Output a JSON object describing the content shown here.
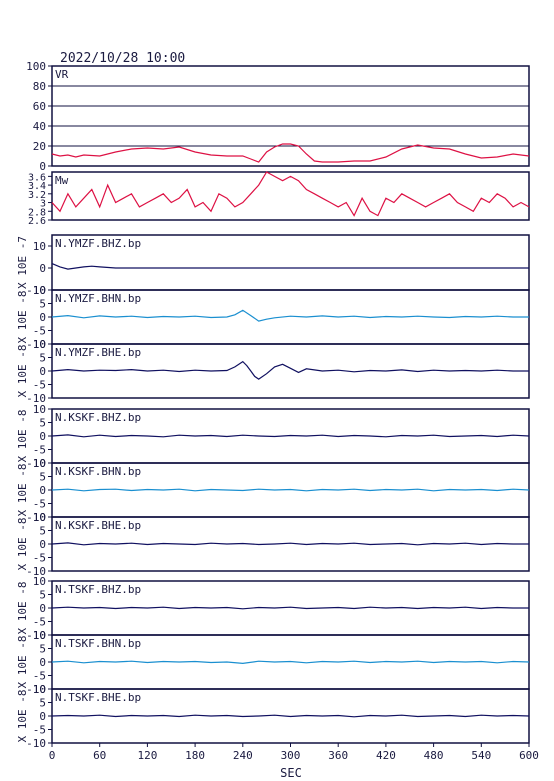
{
  "header": {
    "datetime": "2022/10/28 10:00"
  },
  "chart_data": {
    "type": "line",
    "xlabel": "SEC",
    "xlim": [
      0,
      600
    ],
    "xticks": [
      0,
      60,
      120,
      180,
      240,
      300,
      360,
      420,
      480,
      540,
      600
    ],
    "panels": [
      {
        "label": "VR",
        "ylim": [
          0,
          100
        ],
        "yticks": [
          0,
          20,
          40,
          60,
          80,
          100
        ],
        "grid": true,
        "color": "#dd1144",
        "x": [
          0,
          10,
          20,
          30,
          40,
          60,
          80,
          100,
          120,
          140,
          160,
          180,
          200,
          220,
          240,
          250,
          260,
          270,
          280,
          290,
          300,
          310,
          320,
          330,
          340,
          360,
          380,
          400,
          420,
          440,
          460,
          480,
          500,
          520,
          540,
          560,
          580,
          600
        ],
        "y": [
          12,
          10,
          11,
          9,
          11,
          10,
          14,
          17,
          18,
          17,
          19,
          14,
          11,
          10,
          10,
          7,
          4,
          14,
          19,
          22,
          22,
          20,
          12,
          5,
          4,
          4,
          5,
          5,
          9,
          17,
          21,
          18,
          17,
          12,
          8,
          9,
          12,
          10
        ]
      },
      {
        "label": "Mw",
        "ylim": [
          2.6,
          3.7
        ],
        "yticks": [
          2.6,
          2.8,
          3.0,
          3.2,
          3.4,
          3.6
        ],
        "grid": false,
        "color": "#dd1144",
        "x": [
          0,
          10,
          20,
          30,
          40,
          50,
          60,
          70,
          80,
          90,
          100,
          110,
          120,
          130,
          140,
          150,
          160,
          170,
          180,
          190,
          200,
          210,
          220,
          230,
          240,
          250,
          260,
          270,
          280,
          290,
          300,
          310,
          320,
          330,
          340,
          350,
          360,
          370,
          380,
          390,
          400,
          410,
          420,
          430,
          440,
          450,
          460,
          470,
          480,
          490,
          500,
          510,
          520,
          530,
          540,
          550,
          560,
          570,
          580,
          590,
          600
        ],
        "y": [
          3.0,
          2.8,
          3.2,
          2.9,
          3.1,
          3.3,
          2.9,
          3.4,
          3.0,
          3.1,
          3.2,
          2.9,
          3.0,
          3.1,
          3.2,
          3.0,
          3.1,
          3.3,
          2.9,
          3.0,
          2.8,
          3.2,
          3.1,
          2.9,
          3.0,
          3.2,
          3.4,
          3.7,
          3.6,
          3.5,
          3.6,
          3.5,
          3.3,
          3.2,
          3.1,
          3.0,
          2.9,
          3.0,
          2.7,
          3.1,
          2.8,
          2.7,
          3.1,
          3.0,
          3.2,
          3.1,
          3.0,
          2.9,
          3.0,
          3.1,
          3.2,
          3.0,
          2.9,
          2.8,
          3.1,
          3.0,
          3.2,
          3.1,
          2.9,
          3.0,
          2.9
        ]
      },
      {
        "label": "N.YMZF.BHZ.bp",
        "unit": "X 10E -7",
        "ylim": [
          -10,
          15
        ],
        "yticks": [
          -10,
          0,
          10
        ],
        "grid": false,
        "color": "#101060",
        "x": [
          0,
          10,
          20,
          30,
          40,
          50,
          60,
          80,
          100,
          600
        ],
        "y": [
          2,
          0.5,
          -0.5,
          0,
          0.5,
          0.8,
          0.5,
          0,
          0,
          0
        ]
      },
      {
        "label": "N.YMZF.BHN.bp",
        "unit": "X 10E -8",
        "ylim": [
          -10,
          10
        ],
        "yticks": [
          -10,
          -5,
          0,
          5,
          10
        ],
        "grid": false,
        "color": "#1a8fd0",
        "x": [
          0,
          20,
          40,
          60,
          80,
          100,
          120,
          140,
          160,
          180,
          200,
          220,
          230,
          240,
          250,
          260,
          270,
          280,
          300,
          320,
          340,
          360,
          380,
          400,
          420,
          440,
          460,
          480,
          500,
          520,
          540,
          560,
          580,
          600
        ],
        "y": [
          0,
          0.5,
          -0.3,
          0.4,
          0,
          0.3,
          -0.2,
          0.2,
          0,
          0.3,
          -0.2,
          0,
          0.8,
          2.5,
          0.5,
          -1.5,
          -0.8,
          -0.3,
          0.3,
          0,
          0.4,
          0,
          0.3,
          -0.2,
          0.2,
          0,
          0.3,
          0,
          -0.2,
          0.2,
          0,
          0.3,
          0,
          0
        ]
      },
      {
        "label": "N.YMZF.BHE.bp",
        "unit": "X 10E -8",
        "ylim": [
          -10,
          10
        ],
        "yticks": [
          -10,
          -5,
          0,
          5,
          10
        ],
        "grid": false,
        "color": "#101060",
        "x": [
          0,
          20,
          40,
          60,
          80,
          100,
          120,
          140,
          160,
          180,
          200,
          220,
          230,
          240,
          245,
          250,
          255,
          260,
          270,
          280,
          290,
          300,
          310,
          320,
          340,
          360,
          380,
          400,
          420,
          440,
          460,
          480,
          500,
          520,
          540,
          560,
          580,
          600
        ],
        "y": [
          0,
          0.5,
          0,
          0.3,
          0.2,
          0.5,
          0,
          0.3,
          -0.2,
          0.3,
          0,
          0.2,
          1.5,
          3.5,
          2,
          0,
          -2,
          -3,
          -1,
          1.5,
          2.5,
          1,
          -0.5,
          0.8,
          0,
          0.3,
          -0.3,
          0.2,
          0,
          0.4,
          -0.2,
          0.3,
          0,
          0.2,
          0,
          0.3,
          0,
          0
        ]
      },
      {
        "label": "N.KSKF.BHZ.bp",
        "unit": "X 10E -8",
        "ylim": [
          -10,
          10
        ],
        "yticks": [
          -10,
          -5,
          0,
          5,
          10
        ],
        "grid": false,
        "color": "#101060",
        "x": [
          0,
          20,
          40,
          60,
          80,
          100,
          120,
          140,
          160,
          180,
          200,
          220,
          240,
          260,
          280,
          300,
          320,
          340,
          360,
          380,
          400,
          420,
          440,
          460,
          480,
          500,
          520,
          540,
          560,
          580,
          600
        ],
        "y": [
          0,
          0.4,
          -0.3,
          0.3,
          -0.2,
          0.2,
          0,
          -0.3,
          0.3,
          0,
          0.2,
          -0.2,
          0.3,
          0,
          -0.2,
          0.2,
          0,
          0.3,
          -0.2,
          0.2,
          0,
          -0.3,
          0.2,
          0,
          0.3,
          -0.2,
          0,
          0.2,
          -0.2,
          0.3,
          0
        ]
      },
      {
        "label": "N.KSKF.BHN.bp",
        "unit": "X 10E -8",
        "ylim": [
          -10,
          10
        ],
        "yticks": [
          -10,
          -5,
          0,
          5,
          10
        ],
        "grid": false,
        "color": "#1a8fd0",
        "x": [
          0,
          20,
          40,
          60,
          80,
          100,
          120,
          140,
          160,
          180,
          200,
          220,
          240,
          260,
          280,
          300,
          320,
          340,
          360,
          380,
          400,
          420,
          440,
          460,
          480,
          500,
          520,
          540,
          560,
          580,
          600
        ],
        "y": [
          0,
          0.3,
          -0.3,
          0.2,
          0.3,
          -0.2,
          0.2,
          0,
          0.3,
          -0.3,
          0.2,
          0,
          -0.2,
          0.3,
          0,
          0.2,
          -0.3,
          0.2,
          0,
          0.3,
          -0.2,
          0.2,
          0,
          0.3,
          -0.3,
          0.2,
          0,
          0.2,
          -0.2,
          0.3,
          0
        ]
      },
      {
        "label": "N.KSKF.BHE.bp",
        "unit": "X 10E -8",
        "ylim": [
          -10,
          10
        ],
        "yticks": [
          -10,
          -5,
          0,
          5,
          10
        ],
        "grid": false,
        "color": "#101060",
        "x": [
          0,
          20,
          40,
          60,
          80,
          100,
          120,
          140,
          160,
          180,
          200,
          220,
          240,
          260,
          280,
          300,
          320,
          340,
          360,
          380,
          400,
          420,
          440,
          460,
          480,
          500,
          520,
          540,
          560,
          580,
          600
        ],
        "y": [
          0,
          0.4,
          -0.3,
          0.2,
          0,
          0.3,
          -0.2,
          0.2,
          0,
          -0.2,
          0.3,
          0,
          0.2,
          -0.2,
          0,
          0.3,
          -0.2,
          0.2,
          0,
          0.3,
          -0.2,
          0,
          0.2,
          -0.3,
          0.2,
          0,
          0.3,
          -0.2,
          0.2,
          0,
          0
        ]
      },
      {
        "label": "N.TSKF.BHZ.bp",
        "unit": "X 10E -8",
        "ylim": [
          -10,
          10
        ],
        "yticks": [
          -10,
          -5,
          0,
          5,
          10
        ],
        "grid": false,
        "color": "#101060",
        "x": [
          0,
          20,
          40,
          60,
          80,
          100,
          120,
          140,
          160,
          180,
          200,
          220,
          240,
          260,
          280,
          300,
          320,
          340,
          360,
          380,
          400,
          420,
          440,
          460,
          480,
          500,
          520,
          540,
          560,
          580,
          600
        ],
        "y": [
          0,
          0.3,
          0,
          0.2,
          -0.2,
          0.2,
          0,
          0.3,
          -0.2,
          0.2,
          0,
          0.2,
          -0.3,
          0.2,
          0,
          0.3,
          -0.2,
          0,
          0.2,
          -0.2,
          0.3,
          0,
          0.2,
          -0.2,
          0.2,
          0,
          0.3,
          -0.2,
          0.2,
          0,
          0
        ]
      },
      {
        "label": "N.TSKF.BHN.bp",
        "unit": "X 10E -8",
        "ylim": [
          -10,
          10
        ],
        "yticks": [
          -10,
          -5,
          0,
          5,
          10
        ],
        "grid": false,
        "color": "#1a8fd0",
        "x": [
          0,
          20,
          40,
          60,
          80,
          100,
          120,
          140,
          160,
          180,
          200,
          220,
          240,
          260,
          280,
          300,
          320,
          340,
          360,
          380,
          400,
          420,
          440,
          460,
          480,
          500,
          520,
          540,
          560,
          580,
          600
        ],
        "y": [
          0,
          0.3,
          -0.3,
          0.2,
          0,
          0.3,
          -0.2,
          0.2,
          0,
          0.2,
          -0.2,
          0,
          -0.5,
          0.3,
          0,
          0.2,
          -0.3,
          0.2,
          0,
          0.3,
          -0.2,
          0.2,
          0,
          0.3,
          -0.2,
          0.2,
          0,
          0.2,
          -0.3,
          0.2,
          0
        ]
      },
      {
        "label": "N.TSKF.BHE.bp",
        "unit": "X 10E -8",
        "ylim": [
          -10,
          10
        ],
        "yticks": [
          -10,
          -5,
          0,
          5,
          10
        ],
        "grid": false,
        "color": "#101060",
        "x": [
          0,
          20,
          40,
          60,
          80,
          100,
          120,
          140,
          160,
          180,
          200,
          220,
          240,
          260,
          280,
          300,
          320,
          340,
          360,
          380,
          400,
          420,
          440,
          460,
          480,
          500,
          520,
          540,
          560,
          580,
          600
        ],
        "y": [
          0,
          0.2,
          0,
          0.3,
          -0.2,
          0.2,
          0,
          0.2,
          -0.2,
          0.3,
          0,
          0.2,
          -0.2,
          0,
          0.3,
          -0.2,
          0.2,
          0,
          0.2,
          -0.3,
          0.2,
          0,
          0.3,
          -0.2,
          0,
          0.2,
          -0.2,
          0.3,
          0,
          0.2,
          0
        ]
      }
    ]
  }
}
